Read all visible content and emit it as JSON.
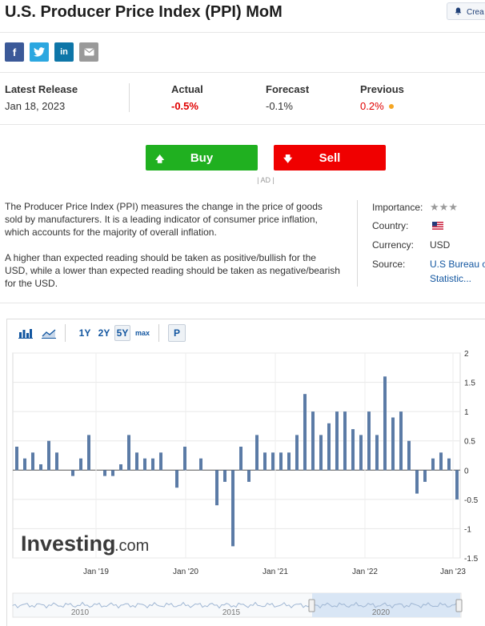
{
  "header": {
    "title": "U.S. Producer Price Index (PPI) MoM",
    "create_alert_label": "Crea"
  },
  "share": {
    "facebook": "f",
    "twitter": "twitter-icon",
    "linkedin": "in",
    "email": "email-icon"
  },
  "release": {
    "latest_label": "Latest Release",
    "latest_date": "Jan 18, 2023",
    "actual_label": "Actual",
    "actual_value": "-0.5%",
    "forecast_label": "Forecast",
    "forecast_value": "-0.1%",
    "previous_label": "Previous",
    "previous_value": "0.2%"
  },
  "trade": {
    "buy_label": "Buy",
    "sell_label": "Sell",
    "ad_label": "| AD |"
  },
  "description": {
    "p1": "The Producer Price Index (PPI) measures the change in the price of goods sold by manufacturers. It is a leading indicator of consumer price inflation, which accounts for the majority of overall inflation.",
    "p2": "A higher than expected reading should be taken as positive/bullish for the USD, while a lower than expected reading should be taken as negative/bearish for the USD."
  },
  "info": {
    "importance_label": "Importance:",
    "importance_stars": 3,
    "country_label": "Country:",
    "currency_label": "Currency:",
    "currency_value": "USD",
    "source_label": "Source:",
    "source_value_line1": "U.S Bureau o",
    "source_value_line2": "Statistic..."
  },
  "chart_toolbar": {
    "ranges": [
      "1Y",
      "2Y",
      "5Y",
      "max"
    ],
    "selected_range": "5Y",
    "p_label": "P"
  },
  "watermark": {
    "brand": "Investing",
    "suffix": ".com"
  },
  "colors": {
    "bar": "#5b7ba6",
    "buy": "#20b020",
    "sell": "#f00000",
    "negative": "#e00000",
    "link": "#1256a0"
  },
  "chart_data": {
    "type": "bar",
    "x_labels": [
      "Jan '19",
      "Jan '20",
      "Jan '21",
      "Jan '22",
      "Jan '23"
    ],
    "y_ticks": [
      2,
      1.5,
      1,
      0.5,
      0,
      -0.5,
      -1,
      -1.5
    ],
    "ylim": [
      -1.5,
      2
    ],
    "values": [
      0.4,
      0.2,
      0.3,
      0.1,
      0.5,
      0.3,
      0.0,
      -0.1,
      0.2,
      0.6,
      0.0,
      -0.1,
      -0.1,
      0.1,
      0.6,
      0.3,
      0.2,
      0.2,
      0.3,
      0.0,
      -0.3,
      0.4,
      0.0,
      0.2,
      0.0,
      -0.6,
      -0.2,
      -1.3,
      0.4,
      -0.2,
      0.6,
      0.3,
      0.3,
      0.3,
      0.3,
      0.6,
      1.3,
      1.0,
      0.6,
      0.8,
      1.0,
      1.0,
      0.7,
      0.6,
      1.0,
      0.6,
      1.6,
      0.9,
      1.0,
      0.5,
      -0.4,
      -0.2,
      0.2,
      0.3,
      0.2,
      -0.5
    ],
    "overview_labels": [
      "2010",
      "2015",
      "2020"
    ]
  }
}
